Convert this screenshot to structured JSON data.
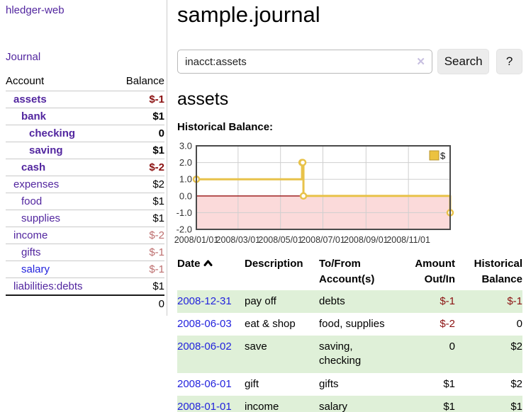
{
  "sidebar": {
    "app_title": "hledger-web",
    "journal_label": "Journal",
    "account_header": "Account",
    "balance_header": "Balance",
    "accounts": [
      {
        "name": "assets",
        "depth": 1,
        "bold": true,
        "balance": "$-1",
        "balance_style": "neg-strong",
        "link_style": "purple"
      },
      {
        "name": "bank",
        "depth": 2,
        "bold": true,
        "balance": "$1",
        "balance_style": "pos",
        "link_style": "purple"
      },
      {
        "name": "checking",
        "depth": 3,
        "bold": true,
        "balance": "0",
        "balance_style": "pos",
        "link_style": "purple"
      },
      {
        "name": "saving",
        "depth": 3,
        "bold": true,
        "balance": "$1",
        "balance_style": "pos",
        "link_style": "purple"
      },
      {
        "name": "cash",
        "depth": 2,
        "bold": true,
        "balance": "$-2",
        "balance_style": "neg-strong",
        "link_style": "purple"
      },
      {
        "name": "expenses",
        "depth": 1,
        "bold": false,
        "balance": "$2",
        "balance_style": "pos",
        "link_style": "purple"
      },
      {
        "name": "food",
        "depth": 2,
        "bold": false,
        "balance": "$1",
        "balance_style": "pos",
        "link_style": "purple"
      },
      {
        "name": "supplies",
        "depth": 2,
        "bold": false,
        "balance": "$1",
        "balance_style": "pos",
        "link_style": "purple"
      },
      {
        "name": "income",
        "depth": 1,
        "bold": false,
        "balance": "$-2",
        "balance_style": "neg-muted",
        "link_style": "purple"
      },
      {
        "name": "gifts",
        "depth": 2,
        "bold": false,
        "balance": "$-1",
        "balance_style": "neg-muted",
        "link_style": "purple"
      },
      {
        "name": "salary",
        "depth": 2,
        "bold": false,
        "balance": "$-1",
        "balance_style": "neg-muted",
        "link_style": "blue"
      },
      {
        "name": "liabilities:debts",
        "depth": 1,
        "bold": false,
        "balance": "$1",
        "balance_style": "pos",
        "link_style": "purple"
      }
    ],
    "total": "0"
  },
  "header": {
    "title": "sample.journal"
  },
  "search": {
    "value": "inacct:assets",
    "clear_icon": "✕",
    "button_label": "Search",
    "help_label": "?"
  },
  "account_page": {
    "heading": "assets",
    "chart_label": "Historical Balance:"
  },
  "chart_data": {
    "type": "line",
    "step": true,
    "title": "Historical Balance",
    "series": [
      {
        "name": "$",
        "color": "#e8c24a",
        "points": [
          [
            "2008-01-01",
            1
          ],
          [
            "2008-06-01",
            2
          ],
          [
            "2008-06-02",
            2
          ],
          [
            "2008-06-03",
            0
          ],
          [
            "2008-12-31",
            -1
          ]
        ]
      }
    ],
    "x_ticks": [
      "2008/01/01",
      "2008/03/01",
      "2008/05/01",
      "2008/07/01",
      "2008/09/01",
      "2008/11/01"
    ],
    "y_ticks": [
      3.0,
      2.0,
      1.0,
      0.0,
      -1.0,
      -2.0
    ],
    "xlim": [
      "2008-01-01",
      "2008-12-31"
    ],
    "ylim": [
      -2,
      3
    ],
    "grid": true,
    "legend": {
      "label": "$",
      "position": "top-right"
    },
    "negative_region_fill": "#fbdada",
    "zero_line_color": "#991111"
  },
  "table": {
    "headers": [
      "Date",
      "Description",
      "To/From Account(s)",
      "Amount Out/In",
      "Historical Balance"
    ],
    "rows": [
      {
        "date": "2008-12-31",
        "description": "pay off",
        "accounts": "debts",
        "amount": "$-1",
        "amount_negative": true,
        "balance": "$-1",
        "balance_negative": true
      },
      {
        "date": "2008-06-03",
        "description": "eat & shop",
        "accounts": "food, supplies",
        "amount": "$-2",
        "amount_negative": true,
        "balance": "0",
        "balance_negative": false
      },
      {
        "date": "2008-06-02",
        "description": "save",
        "accounts": "saving, checking",
        "amount": "0",
        "amount_negative": false,
        "balance": "$2",
        "balance_negative": false
      },
      {
        "date": "2008-06-01",
        "description": "gift",
        "accounts": "gifts",
        "amount": "$1",
        "amount_negative": false,
        "balance": "$2",
        "balance_negative": false
      },
      {
        "date": "2008-01-01",
        "description": "income",
        "accounts": "salary",
        "amount": "$1",
        "amount_negative": false,
        "balance": "$1",
        "balance_negative": false
      }
    ]
  },
  "colors": {
    "link_purple": "#52269f",
    "link_blue": "#2323dd",
    "negative_strong": "#8b1111",
    "negative_muted": "#bd6e6e",
    "row_stripe_green": "#dff0d8",
    "chart_line_gold": "#e8c24a",
    "chart_border": "#4a4a4a",
    "grid_gray": "#cfcfcf"
  }
}
